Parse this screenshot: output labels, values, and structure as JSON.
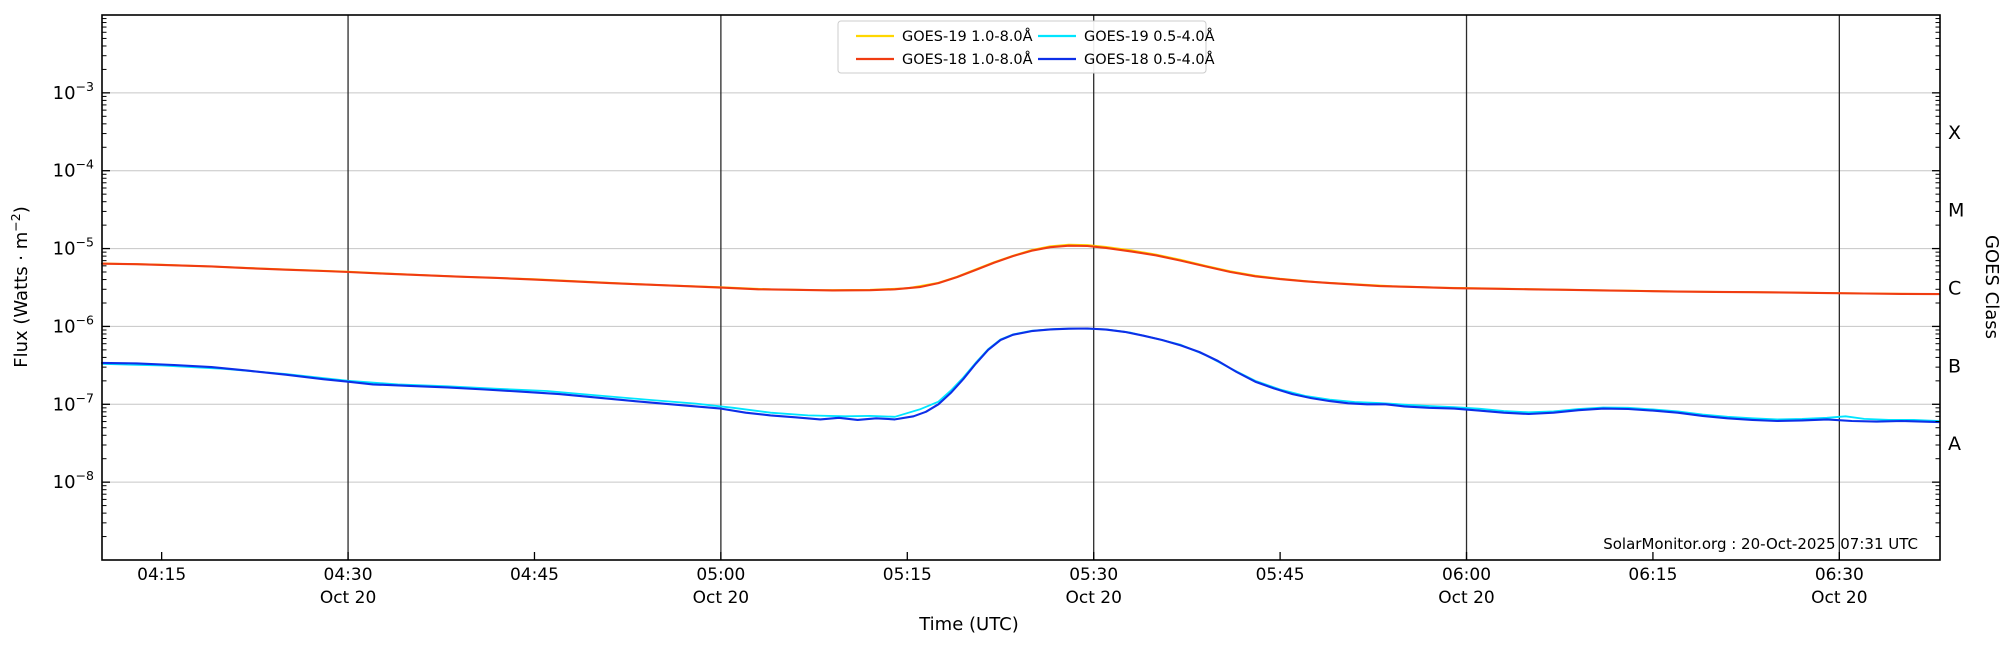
{
  "figure": {
    "source_text": "SolarMonitor.org : 20-Oct-2025 07:31 UTC",
    "xlabel": "Time (UTC)",
    "ylabel_left": {
      "main": "Flux (Watts · m",
      "sup": "−2",
      "close": ")"
    },
    "ylabel_right": "GOES Class"
  },
  "colors": {
    "spine": "#000000",
    "grid_horizontal": "#c6c6c6",
    "grid_vertical": "#2b2b2b",
    "legend_border": "#cccccc",
    "background": "#ffffff"
  },
  "chart_data": {
    "type": "line",
    "title": "",
    "xlabel": "Time (UTC)",
    "ylabel": "Flux (Watts · m⁻²)",
    "ylabel_right": "GOES Class",
    "x_unit": "minutes after 04:00 UTC, 20-Oct-2025",
    "xlim": [
      10.2,
      158.1
    ],
    "ylim": [
      1e-09,
      0.01
    ],
    "yscale": "log",
    "grid": {
      "horizontal": "decades",
      "vertical": "half-hour marks"
    },
    "legend_position": "top-center",
    "x_ticks": [
      {
        "t": 15,
        "label": "04:15",
        "sub": ""
      },
      {
        "t": 30,
        "label": "04:30",
        "sub": "Oct 20"
      },
      {
        "t": 45,
        "label": "04:45",
        "sub": ""
      },
      {
        "t": 60,
        "label": "05:00",
        "sub": "Oct 20"
      },
      {
        "t": 75,
        "label": "05:15",
        "sub": ""
      },
      {
        "t": 90,
        "label": "05:30",
        "sub": "Oct 20"
      },
      {
        "t": 105,
        "label": "05:45",
        "sub": ""
      },
      {
        "t": 120,
        "label": "06:00",
        "sub": "Oct 20"
      },
      {
        "t": 135,
        "label": "06:15",
        "sub": ""
      },
      {
        "t": 150,
        "label": "06:30",
        "sub": "Oct 20"
      }
    ],
    "y_ticks": [
      {
        "value": 0.001,
        "exp": "−3"
      },
      {
        "value": 0.0001,
        "exp": "−4"
      },
      {
        "value": 1e-05,
        "exp": "−5"
      },
      {
        "value": 1e-06,
        "exp": "−6"
      },
      {
        "value": 1e-07,
        "exp": "−7"
      },
      {
        "value": 1e-08,
        "exp": "−8"
      }
    ],
    "class_bands": [
      {
        "label": "X",
        "flux": 0.000316
      },
      {
        "label": "M",
        "flux": 3.16e-05
      },
      {
        "label": "C",
        "flux": 3.16e-06
      },
      {
        "label": "B",
        "flux": 3.16e-07
      },
      {
        "label": "A",
        "flux": 3.16e-08
      }
    ],
    "legend": [
      {
        "label": "GOES-19 1.0-8.0Å",
        "color": "#FFD700"
      },
      {
        "label": "GOES-18 1.0-8.0Å",
        "color": "#F03C11"
      },
      {
        "label": "GOES-19 0.5-4.0Å",
        "color": "#00E5FF"
      },
      {
        "label": "GOES-18 0.5-4.0Å",
        "color": "#0D2FE8"
      }
    ],
    "series": [
      {
        "name": "GOES-19 1.0-8.0Å",
        "color": "#FFD700",
        "width": 1.8,
        "points": [
          [
            10.2,
            6.45e-06
          ],
          [
            15,
            6.2e-06
          ],
          [
            20,
            5.8e-06
          ],
          [
            25,
            5.4e-06
          ],
          [
            30,
            5.05e-06
          ],
          [
            35,
            4.65e-06
          ],
          [
            40,
            4.3e-06
          ],
          [
            45,
            4.05e-06
          ],
          [
            50,
            3.7e-06
          ],
          [
            55,
            3.4e-06
          ],
          [
            60,
            3.2e-06
          ],
          [
            64,
            3e-06
          ],
          [
            68,
            2.93e-06
          ],
          [
            72,
            2.95e-06
          ],
          [
            75,
            3.1e-06
          ],
          [
            77.5,
            3.65e-06
          ],
          [
            79,
            4.35e-06
          ],
          [
            80.5,
            5.4e-06
          ],
          [
            82,
            6.7e-06
          ],
          [
            83.5,
            8.1e-06
          ],
          [
            85,
            9.6e-06
          ],
          [
            86.5,
            1.07e-05
          ],
          [
            88,
            1.12e-05
          ],
          [
            89.5,
            1.11e-05
          ],
          [
            91,
            1.05e-05
          ],
          [
            93,
            9.5e-06
          ],
          [
            95,
            8.4e-06
          ],
          [
            97,
            7.2e-06
          ],
          [
            99,
            6e-06
          ],
          [
            101,
            5.1e-06
          ],
          [
            103,
            4.5e-06
          ],
          [
            105,
            4.1e-06
          ],
          [
            108,
            3.7e-06
          ],
          [
            111,
            3.5e-06
          ],
          [
            114,
            3.3e-06
          ],
          [
            118,
            3.15e-06
          ],
          [
            122,
            3.08e-06
          ],
          [
            126,
            3e-06
          ],
          [
            130,
            2.93e-06
          ],
          [
            134,
            2.87e-06
          ],
          [
            138,
            2.8e-06
          ],
          [
            142,
            2.77e-06
          ],
          [
            146,
            2.73e-06
          ],
          [
            150,
            2.68e-06
          ],
          [
            154,
            2.64e-06
          ],
          [
            158,
            2.61e-06
          ]
        ]
      },
      {
        "name": "GOES-18 1.0-8.0Å",
        "color": "#F03C11",
        "width": 2.1,
        "points": [
          [
            10.2,
            6.4e-06
          ],
          [
            13,
            6.3e-06
          ],
          [
            16,
            6.1e-06
          ],
          [
            19,
            5.9e-06
          ],
          [
            22,
            5.6e-06
          ],
          [
            25,
            5.35e-06
          ],
          [
            28,
            5.15e-06
          ],
          [
            30,
            5e-06
          ],
          [
            33,
            4.75e-06
          ],
          [
            36,
            4.55e-06
          ],
          [
            39,
            4.35e-06
          ],
          [
            42,
            4.2e-06
          ],
          [
            45,
            4e-06
          ],
          [
            48,
            3.8e-06
          ],
          [
            51,
            3.6e-06
          ],
          [
            54,
            3.45e-06
          ],
          [
            57,
            3.3e-06
          ],
          [
            60,
            3.15e-06
          ],
          [
            63,
            3e-06
          ],
          [
            66,
            2.95e-06
          ],
          [
            69,
            2.9e-06
          ],
          [
            72,
            2.92e-06
          ],
          [
            74,
            3e-06
          ],
          [
            76,
            3.2e-06
          ],
          [
            77.5,
            3.6e-06
          ],
          [
            79,
            4.3e-06
          ],
          [
            80.5,
            5.3e-06
          ],
          [
            82,
            6.6e-06
          ],
          [
            83.5,
            8e-06
          ],
          [
            85,
            9.4e-06
          ],
          [
            86.5,
            1.04e-05
          ],
          [
            88,
            1.09e-05
          ],
          [
            89.5,
            1.08e-05
          ],
          [
            91,
            1.02e-05
          ],
          [
            93,
            9.2e-06
          ],
          [
            95,
            8.2e-06
          ],
          [
            97,
            7e-06
          ],
          [
            99,
            5.9e-06
          ],
          [
            101,
            5e-06
          ],
          [
            103,
            4.4e-06
          ],
          [
            105,
            4.05e-06
          ],
          [
            107,
            3.8e-06
          ],
          [
            109,
            3.6e-06
          ],
          [
            111,
            3.45e-06
          ],
          [
            113,
            3.3e-06
          ],
          [
            116,
            3.2e-06
          ],
          [
            119,
            3.1e-06
          ],
          [
            122,
            3.05e-06
          ],
          [
            125,
            3e-06
          ],
          [
            128,
            2.95e-06
          ],
          [
            131,
            2.9e-06
          ],
          [
            134,
            2.85e-06
          ],
          [
            137,
            2.8e-06
          ],
          [
            140,
            2.78e-06
          ],
          [
            143,
            2.75e-06
          ],
          [
            146,
            2.72e-06
          ],
          [
            149,
            2.68e-06
          ],
          [
            152,
            2.65e-06
          ],
          [
            155,
            2.62e-06
          ],
          [
            158,
            2.6e-06
          ]
        ]
      },
      {
        "name": "GOES-19 0.5-4.0Å",
        "color": "#00E5FF",
        "width": 1.8,
        "points": [
          [
            10.2,
            3.3e-07
          ],
          [
            15,
            3.15e-07
          ],
          [
            20,
            2.85e-07
          ],
          [
            25,
            2.45e-07
          ],
          [
            30,
            2e-07
          ],
          [
            34,
            1.8e-07
          ],
          [
            38,
            1.7e-07
          ],
          [
            42,
            1.58e-07
          ],
          [
            46,
            1.48e-07
          ],
          [
            50,
            1.3e-07
          ],
          [
            54,
            1.15e-07
          ],
          [
            58,
            1.02e-07
          ],
          [
            61,
            9e-08
          ],
          [
            64,
            7.8e-08
          ],
          [
            67,
            7.2e-08
          ],
          [
            70,
            7e-08
          ],
          [
            72,
            7.1e-08
          ],
          [
            74,
            6.9e-08
          ],
          [
            76,
            8.6e-08
          ],
          [
            77.5,
            1.08e-07
          ],
          [
            78.5,
            1.5e-07
          ],
          [
            79.5,
            2.2e-07
          ],
          [
            80.5,
            3.4e-07
          ],
          [
            81.5,
            5.1e-07
          ],
          [
            82.5,
            6.8e-07
          ],
          [
            83.5,
            7.9e-07
          ],
          [
            85,
            8.8e-07
          ],
          [
            87,
            9.3e-07
          ],
          [
            89,
            9.4e-07
          ],
          [
            91,
            9.15e-07
          ],
          [
            93,
            8.3e-07
          ],
          [
            95,
            7e-07
          ],
          [
            97,
            5.8e-07
          ],
          [
            99,
            4.3e-07
          ],
          [
            101,
            2.9e-07
          ],
          [
            103,
            2e-07
          ],
          [
            105,
            1.55e-07
          ],
          [
            107,
            1.28e-07
          ],
          [
            109,
            1.15e-07
          ],
          [
            111,
            1.07e-07
          ],
          [
            113,
            1.04e-07
          ],
          [
            115,
            9.9e-08
          ],
          [
            117,
            9.5e-08
          ],
          [
            119,
            9.2e-08
          ],
          [
            121,
            8.8e-08
          ],
          [
            123,
            8.2e-08
          ],
          [
            125,
            7.9e-08
          ],
          [
            127,
            8.1e-08
          ],
          [
            129,
            8.7e-08
          ],
          [
            131,
            9.1e-08
          ],
          [
            133,
            9e-08
          ],
          [
            135,
            8.6e-08
          ],
          [
            137,
            8.1e-08
          ],
          [
            139,
            7.4e-08
          ],
          [
            141,
            6.9e-08
          ],
          [
            143,
            6.6e-08
          ],
          [
            145,
            6.4e-08
          ],
          [
            147,
            6.5e-08
          ],
          [
            149,
            6.7e-08
          ],
          [
            150.5,
            7e-08
          ],
          [
            152,
            6.5e-08
          ],
          [
            154,
            6.3e-08
          ],
          [
            156,
            6.3e-08
          ],
          [
            158,
            6.1e-08
          ]
        ]
      },
      {
        "name": "GOES-18 0.5-4.0Å",
        "color": "#0D2FE8",
        "width": 2.1,
        "points": [
          [
            10.2,
            3.4e-07
          ],
          [
            13,
            3.35e-07
          ],
          [
            16,
            3.2e-07
          ],
          [
            19,
            3e-07
          ],
          [
            22,
            2.7e-07
          ],
          [
            25,
            2.4e-07
          ],
          [
            28,
            2.1e-07
          ],
          [
            30,
            1.95e-07
          ],
          [
            32,
            1.8e-07
          ],
          [
            35,
            1.72e-07
          ],
          [
            38,
            1.65e-07
          ],
          [
            41,
            1.55e-07
          ],
          [
            44,
            1.45e-07
          ],
          [
            47,
            1.35e-07
          ],
          [
            50,
            1.22e-07
          ],
          [
            53,
            1.1e-07
          ],
          [
            56,
            1e-07
          ],
          [
            58,
            9.4e-08
          ],
          [
            60,
            8.8e-08
          ],
          [
            62,
            7.8e-08
          ],
          [
            64,
            7.2e-08
          ],
          [
            66,
            6.8e-08
          ],
          [
            68,
            6.4e-08
          ],
          [
            69.5,
            6.7e-08
          ],
          [
            71,
            6.3e-08
          ],
          [
            72.5,
            6.6e-08
          ],
          [
            74,
            6.4e-08
          ],
          [
            75.5,
            7e-08
          ],
          [
            76.5,
            8e-08
          ],
          [
            77.5,
            1e-07
          ],
          [
            78.5,
            1.4e-07
          ],
          [
            79.5,
            2.1e-07
          ],
          [
            80.5,
            3.3e-07
          ],
          [
            81.5,
            5e-07
          ],
          [
            82.5,
            6.7e-07
          ],
          [
            83.5,
            7.8e-07
          ],
          [
            85,
            8.7e-07
          ],
          [
            86.5,
            9.15e-07
          ],
          [
            88,
            9.35e-07
          ],
          [
            89.5,
            9.4e-07
          ],
          [
            91,
            9.1e-07
          ],
          [
            92.5,
            8.5e-07
          ],
          [
            94,
            7.6e-07
          ],
          [
            95.5,
            6.7e-07
          ],
          [
            97,
            5.7e-07
          ],
          [
            98.5,
            4.7e-07
          ],
          [
            100,
            3.6e-07
          ],
          [
            101.5,
            2.6e-07
          ],
          [
            103,
            1.95e-07
          ],
          [
            104.5,
            1.6e-07
          ],
          [
            106,
            1.35e-07
          ],
          [
            107.5,
            1.2e-07
          ],
          [
            109,
            1.1e-07
          ],
          [
            110.5,
            1.03e-07
          ],
          [
            112,
            1e-07
          ],
          [
            113.5,
            1e-07
          ],
          [
            115,
            9.4e-08
          ],
          [
            117,
            9e-08
          ],
          [
            119,
            8.8e-08
          ],
          [
            121,
            8.3e-08
          ],
          [
            123,
            7.8e-08
          ],
          [
            125,
            7.5e-08
          ],
          [
            127,
            7.8e-08
          ],
          [
            129,
            8.4e-08
          ],
          [
            131,
            8.8e-08
          ],
          [
            133,
            8.7e-08
          ],
          [
            135,
            8.3e-08
          ],
          [
            137,
            7.8e-08
          ],
          [
            139,
            7.1e-08
          ],
          [
            141,
            6.6e-08
          ],
          [
            143,
            6.3e-08
          ],
          [
            145,
            6.1e-08
          ],
          [
            147,
            6.2e-08
          ],
          [
            149,
            6.4e-08
          ],
          [
            151,
            6.1e-08
          ],
          [
            153,
            6e-08
          ],
          [
            155,
            6.1e-08
          ],
          [
            158,
            5.9e-08
          ]
        ]
      }
    ]
  }
}
